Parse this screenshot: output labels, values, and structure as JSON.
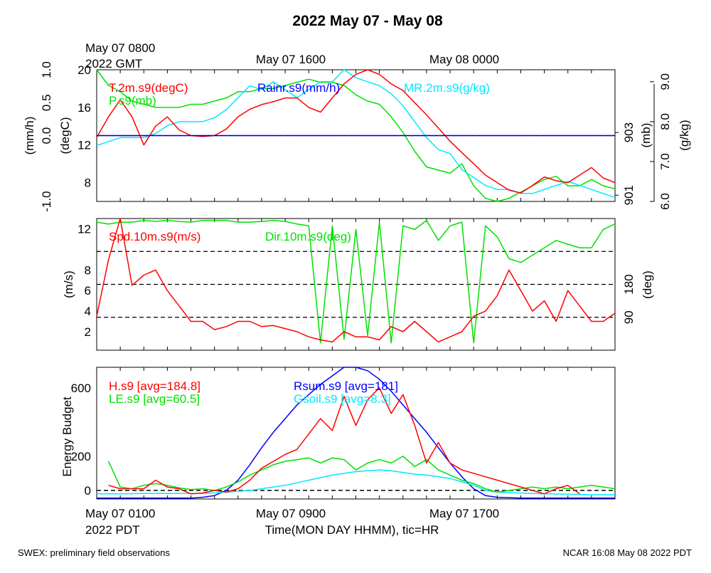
{
  "page": {
    "title": "2022 May 07 - May 08",
    "footer_left": "SWEX: preliminary field observations",
    "footer_right": "NCAR 16:08 May 08 2022 PDT"
  },
  "top_time_labels": {
    "start_line1": "May 07 0800",
    "start_line2": "2022 GMT",
    "mid": "May 07 1600",
    "end": "May 08 0000"
  },
  "bottom_time_labels": {
    "start_line1": "May 07 0100",
    "start_line2": "2022 PDT",
    "mid": "May 07 0900",
    "end": "May 07 1700",
    "xlabel": "Time(MON DAY HHMM), tic=HR"
  },
  "colors": {
    "red": "#ff0000",
    "green": "#00e000",
    "blue": "#0000ff",
    "cyan": "#00e8ff",
    "black": "#000000"
  },
  "chart_data": [
    {
      "type": "line",
      "panel": "meteorology",
      "x_range_hours_pdt": [
        1,
        23
      ],
      "axes": {
        "left_outer": {
          "label": "(mm/h)",
          "ylim": [
            -1.0,
            1.0
          ],
          "ticks": [
            "-1.0",
            "0.0",
            "0.5",
            "1.0"
          ]
        },
        "left_inner": {
          "label": "(degC)",
          "ylim": [
            6,
            20
          ],
          "ticks": [
            "8",
            "12",
            "16",
            "20"
          ]
        },
        "right_inner": {
          "label": "(mb)",
          "ylim": [
            900.8,
            905
          ],
          "ticks": [
            "901",
            "903"
          ]
        },
        "right_outer": {
          "label": "(g/kg)",
          "ylim": [
            6.0,
            9.3
          ],
          "ticks": [
            "6.0",
            "7.0",
            "8.0",
            "9.0"
          ]
        }
      },
      "series": [
        {
          "name": "T.2m.s9(degC)",
          "color": "#ff0000",
          "axis": "left_inner",
          "x": [
            1,
            1.5,
            2,
            2.5,
            3,
            3.5,
            4,
            4.5,
            5,
            5.5,
            6,
            6.5,
            7,
            7.5,
            8,
            8.5,
            9,
            9.5,
            10,
            10.5,
            11,
            11.5,
            12,
            12.5,
            13,
            13.5,
            14,
            14.5,
            15,
            15.5,
            16,
            16.5,
            17,
            17.5,
            18,
            18.5,
            19,
            19.5,
            20,
            20.5,
            21,
            21.5,
            22,
            22.5,
            23
          ],
          "y": [
            12.8,
            15.0,
            16.8,
            15.0,
            12.0,
            14.0,
            15.0,
            13.6,
            13.0,
            12.9,
            13.0,
            13.7,
            15.0,
            15.8,
            16.3,
            16.6,
            17.0,
            17.0,
            16.0,
            15.5,
            17.0,
            18.5,
            19.5,
            20.0,
            19.5,
            18.5,
            17.8,
            16.5,
            15.2,
            13.8,
            12.4,
            11.2,
            10.0,
            8.8,
            8.0,
            7.2,
            6.9,
            7.7,
            8.6,
            8.2,
            8.0,
            8.8,
            9.6,
            8.5,
            8.0
          ]
        },
        {
          "name": "P.s9(mb)",
          "color": "#00e000",
          "axis": "right_inner",
          "x": [
            1,
            1.5,
            2,
            2.5,
            3,
            3.5,
            4,
            4.5,
            5,
            5.5,
            6,
            6.5,
            7,
            7.5,
            8,
            8.5,
            9,
            9.5,
            10,
            10.5,
            11,
            11.5,
            12,
            12.5,
            13,
            13.5,
            14,
            14.5,
            15,
            15.5,
            16,
            16.5,
            17,
            17.5,
            18,
            18.5,
            19,
            19.5,
            20,
            20.5,
            21,
            21.5,
            22,
            22.5,
            23
          ],
          "y": [
            905.0,
            904.5,
            904.3,
            904.0,
            903.9,
            903.8,
            903.8,
            903.8,
            903.9,
            903.9,
            904.0,
            904.1,
            904.3,
            904.3,
            904.4,
            904.4,
            904.5,
            904.6,
            904.7,
            904.6,
            904.6,
            904.5,
            904.2,
            904.0,
            903.9,
            903.5,
            903.0,
            902.4,
            901.9,
            901.8,
            901.7,
            902.0,
            901.3,
            900.9,
            900.8,
            900.9,
            901.1,
            901.3,
            901.5,
            901.6,
            901.3,
            901.3,
            901.5,
            901.3,
            901.2
          ]
        },
        {
          "name": "Rainr.s9(mm/h)",
          "color": "#0000ff",
          "axis": "left_outer",
          "x": [
            1,
            23
          ],
          "y": [
            0.0,
            0.0
          ]
        },
        {
          "name": "MR.2m.s9(g/kg)",
          "color": "#00e8ff",
          "axis": "right_outer",
          "x": [
            1,
            1.5,
            2,
            2.5,
            3,
            3.5,
            4,
            4.5,
            5,
            5.5,
            6,
            6.5,
            7,
            7.5,
            8,
            8.5,
            9,
            9.5,
            10,
            10.5,
            11,
            11.5,
            12,
            12.5,
            13,
            13.5,
            14,
            14.5,
            15,
            15.5,
            16,
            16.5,
            17,
            17.5,
            18,
            18.5,
            19,
            19.5,
            20,
            20.5,
            21,
            21.5,
            22,
            22.5,
            23
          ],
          "y": [
            7.4,
            7.5,
            7.6,
            7.6,
            7.6,
            7.7,
            7.9,
            8.0,
            8.0,
            8.0,
            8.1,
            8.3,
            8.6,
            8.9,
            8.8,
            9.0,
            8.8,
            8.6,
            8.8,
            9.0,
            9.0,
            9.3,
            9.1,
            9.0,
            8.9,
            8.7,
            8.4,
            8.0,
            7.6,
            7.3,
            7.2,
            6.8,
            6.6,
            6.4,
            6.3,
            6.3,
            6.2,
            6.2,
            6.3,
            6.4,
            6.5,
            6.4,
            6.3,
            6.2,
            6.1
          ]
        }
      ],
      "legend": [
        "T.2m.s9(degC)",
        "P.s9(mb)",
        "Rainr.s9(mm/h)",
        "MR.2m.s9(g/kg)"
      ]
    },
    {
      "type": "line",
      "panel": "wind",
      "x_range_hours_pdt": [
        1,
        23
      ],
      "axes": {
        "left": {
          "label": "(m/s)",
          "ylim": [
            0.2,
            13.0
          ],
          "ticks": [
            "2",
            "4",
            "6",
            "8",
            "12"
          ]
        },
        "right": {
          "label": "(deg)",
          "ylim": [
            0,
            360
          ],
          "ticks": [
            "90",
            "180"
          ]
        }
      },
      "reference_lines_deg": [
        90,
        180,
        270
      ],
      "series": [
        {
          "name": "Spd.10m.s9(m/s)",
          "color": "#ff0000",
          "axis": "left",
          "x": [
            1,
            1.5,
            2,
            2.5,
            3,
            3.5,
            4,
            4.5,
            5,
            5.5,
            6,
            6.5,
            7,
            7.5,
            8,
            8.5,
            9,
            9.5,
            10,
            10.5,
            11,
            11.5,
            12,
            12.5,
            13,
            13.5,
            14,
            14.5,
            15,
            15.5,
            16,
            16.5,
            17,
            17.5,
            18,
            18.5,
            19,
            19.5,
            20,
            20.5,
            21,
            21.5,
            22,
            22.5,
            23
          ],
          "y": [
            3.5,
            9.0,
            13.0,
            6.5,
            7.5,
            8.0,
            6.0,
            4.5,
            3.0,
            3.0,
            2.2,
            2.5,
            3.0,
            3.0,
            2.5,
            2.6,
            2.3,
            2.0,
            1.5,
            1.2,
            1.0,
            2.0,
            1.5,
            1.5,
            1.2,
            2.5,
            2.0,
            3.0,
            2.0,
            1.0,
            1.5,
            2.0,
            3.5,
            4.0,
            5.5,
            8.0,
            6.0,
            4.0,
            5.0,
            3.0,
            6.0,
            4.5,
            3.0,
            3.0,
            3.8
          ]
        },
        {
          "name": "Dir.10m.s9(deg)",
          "color": "#00e000",
          "axis": "right",
          "x": [
            1,
            1.5,
            2,
            2.5,
            3,
            3.5,
            4,
            4.5,
            5,
            5.5,
            6,
            6.5,
            7,
            7.5,
            8,
            8.5,
            9,
            9.5,
            10,
            10.5,
            11,
            11.5,
            12,
            12.5,
            13,
            13.5,
            14,
            14.5,
            15,
            15.5,
            16,
            16.5,
            17,
            17.5,
            18,
            18.5,
            19,
            19.5,
            20,
            20.5,
            21,
            21.5,
            22,
            22.5,
            23
          ],
          "y": [
            350,
            345,
            350,
            350,
            355,
            352,
            355,
            352,
            350,
            355,
            355,
            355,
            350,
            350,
            352,
            355,
            352,
            345,
            340,
            20,
            340,
            30,
            330,
            40,
            350,
            20,
            340,
            330,
            355,
            300,
            340,
            350,
            20,
            340,
            310,
            250,
            240,
            260,
            280,
            300,
            290,
            280,
            280,
            330,
            345
          ]
        }
      ],
      "legend": [
        "Spd.10m.s9(m/s)",
        "Dir.10m.s9(deg)"
      ]
    },
    {
      "type": "line",
      "panel": "energy",
      "x_range_hours_pdt": [
        1,
        23
      ],
      "ylabel": "Energy Budget",
      "ylim": [
        -50,
        720
      ],
      "yticks": [
        "0",
        "200",
        "600"
      ],
      "series": [
        {
          "name": "H.s9 [avg=184.8]",
          "color": "#ff0000",
          "x": [
            1.5,
            2,
            3,
            3.5,
            4,
            4.5,
            5,
            5.5,
            6,
            6.5,
            7,
            7.5,
            8,
            8.5,
            9,
            9.5,
            10.5,
            11,
            11.5,
            12,
            12.5,
            13,
            13.5,
            14,
            14.5,
            15,
            15.5,
            16,
            16.5,
            20,
            20.5,
            21,
            21.5
          ],
          "y": [
            30,
            10,
            10,
            60,
            20,
            10,
            -20,
            -15,
            0,
            -10,
            10,
            60,
            130,
            170,
            210,
            240,
            420,
            350,
            550,
            380,
            530,
            600,
            450,
            560,
            380,
            160,
            280,
            160,
            120,
            -20,
            10,
            30,
            -20
          ],
          "segments_note": "gapped line"
        },
        {
          "name": "LE.s9 [avg=60.5]",
          "color": "#00e000",
          "x": [
            1.5,
            2,
            2.5,
            3,
            3.5,
            4,
            4.5,
            5,
            5.5,
            6,
            6.5,
            7,
            7.5,
            8,
            8.5,
            9,
            9.5,
            10,
            10.5,
            11,
            11.5,
            12,
            12.5,
            13,
            13.5,
            14,
            14.5,
            15,
            15.5,
            16,
            16.5,
            17,
            17.5,
            18,
            18.5,
            19,
            19.5,
            20,
            20.5,
            21,
            21.5,
            22,
            22.5,
            23
          ],
          "y": [
            170,
            20,
            10,
            30,
            40,
            30,
            15,
            5,
            10,
            0,
            20,
            50,
            90,
            120,
            150,
            170,
            180,
            190,
            160,
            190,
            180,
            120,
            160,
            180,
            160,
            200,
            140,
            180,
            120,
            90,
            60,
            40,
            10,
            -10,
            0,
            10,
            20,
            10,
            20,
            10,
            20,
            30,
            20,
            10
          ]
        },
        {
          "name": "Rsum.s9 [avg=181]",
          "color": "#0000ff",
          "x": [
            1,
            2,
            3,
            4,
            5,
            5.5,
            6,
            6.5,
            7,
            7.5,
            8,
            8.5,
            9,
            9.5,
            10,
            10.5,
            11,
            11.5,
            12,
            12.5,
            13,
            13.5,
            14,
            14.5,
            15,
            15.5,
            16,
            16.5,
            17,
            17.5,
            18,
            19,
            20,
            21,
            22,
            23
          ],
          "y": [
            -45,
            -45,
            -45,
            -45,
            -45,
            -40,
            -30,
            0,
            60,
            150,
            250,
            340,
            420,
            500,
            560,
            620,
            670,
            720,
            720,
            700,
            650,
            580,
            500,
            420,
            340,
            250,
            160,
            80,
            10,
            -30,
            -40,
            -45,
            -45,
            -45,
            -45,
            -45
          ]
        },
        {
          "name": "Gsoil.s9 [avg=8.3]",
          "color": "#00e8ff",
          "x": [
            1,
            2,
            3,
            4,
            5,
            5.5,
            6,
            6.5,
            7,
            7.5,
            8,
            8.5,
            9,
            9.5,
            10,
            10.5,
            11,
            11.5,
            12,
            12.5,
            13,
            13.5,
            14,
            14.5,
            15,
            15.5,
            16,
            16.5,
            17,
            17.5,
            18,
            19,
            20,
            21,
            22,
            23
          ],
          "y": [
            -20,
            -20,
            -18,
            -18,
            -18,
            -17,
            -15,
            -10,
            -5,
            0,
            10,
            20,
            30,
            45,
            60,
            75,
            90,
            100,
            110,
            115,
            120,
            115,
            105,
            95,
            90,
            80,
            70,
            50,
            30,
            0,
            -10,
            -15,
            -20,
            -22,
            -25,
            -25
          ]
        }
      ],
      "zero_line": 0,
      "legend": [
        "H.s9 [avg=184.8]",
        "LE.s9 [avg=60.5]",
        "Rsum.s9 [avg=181]",
        "Gsoil.s9 [avg=8.3]"
      ]
    }
  ]
}
